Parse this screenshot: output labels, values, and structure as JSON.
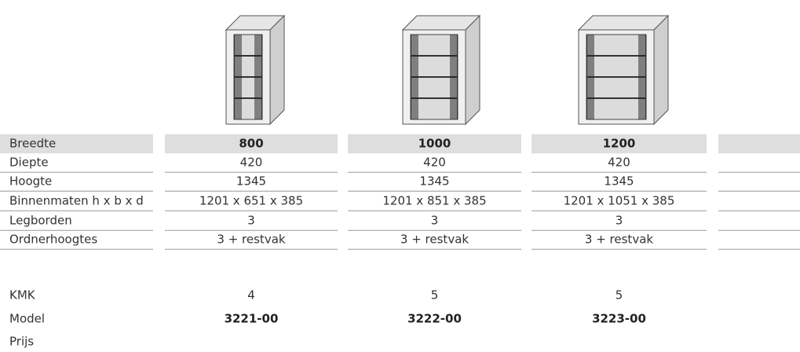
{
  "table": {
    "rows": [
      {
        "label": "Breedte",
        "cells": [
          "800",
          "1000",
          "1200"
        ]
      },
      {
        "label": "Diepte",
        "cells": [
          "420",
          "420",
          "420"
        ]
      },
      {
        "label": "Hoogte",
        "cells": [
          "1345",
          "1345",
          "1345"
        ]
      },
      {
        "label": "Binnenmaten h x b x d",
        "cells": [
          "1201 x 651 x 385",
          "1201 x 851 x 385",
          "1201 x 1051 x 385"
        ]
      },
      {
        "label": "Legborden",
        "cells": [
          "3",
          "3",
          "3"
        ]
      },
      {
        "label": "Ordnerhoogtes",
        "cells": [
          "3 + restvak",
          "3 + restvak",
          "3 + restvak"
        ]
      }
    ],
    "extra_rows": [
      {
        "label": "KMK",
        "cells": [
          "4",
          "5",
          "5"
        ]
      },
      {
        "label": "Model",
        "cells": [
          "3221-00",
          "3222-00",
          "3223-00"
        ]
      },
      {
        "label": "Prijs",
        "cells": []
      }
    ]
  }
}
